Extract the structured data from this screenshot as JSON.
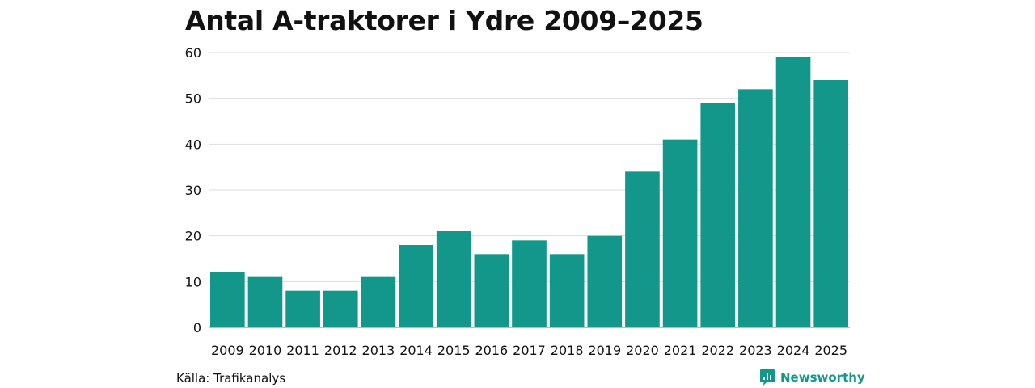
{
  "title": "Antal A-traktorer i Ydre 2009–2025",
  "source": "Källa: Trafikanalys",
  "brand": {
    "name": "Newsworthy",
    "icon": "newsworthy-logo-icon"
  },
  "colors": {
    "bar": "#13978a",
    "grid": "#dddddd",
    "axis": "#bbbbbb",
    "brand": "#13978a",
    "text": "#111111"
  },
  "chart_data": {
    "type": "bar",
    "categories": [
      "2009",
      "2010",
      "2011",
      "2012",
      "2013",
      "2014",
      "2015",
      "2016",
      "2017",
      "2018",
      "2019",
      "2020",
      "2021",
      "2022",
      "2023",
      "2024",
      "2025"
    ],
    "values": [
      12,
      11,
      8,
      8,
      11,
      18,
      21,
      16,
      19,
      16,
      20,
      34,
      41,
      49,
      52,
      59,
      54
    ],
    "title": "Antal A-traktorer i Ydre 2009–2025",
    "xlabel": "",
    "ylabel": "",
    "ylim": [
      0,
      60
    ],
    "yticks": [
      0,
      10,
      20,
      30,
      40,
      50,
      60
    ],
    "grid": true,
    "legend": "none"
  }
}
